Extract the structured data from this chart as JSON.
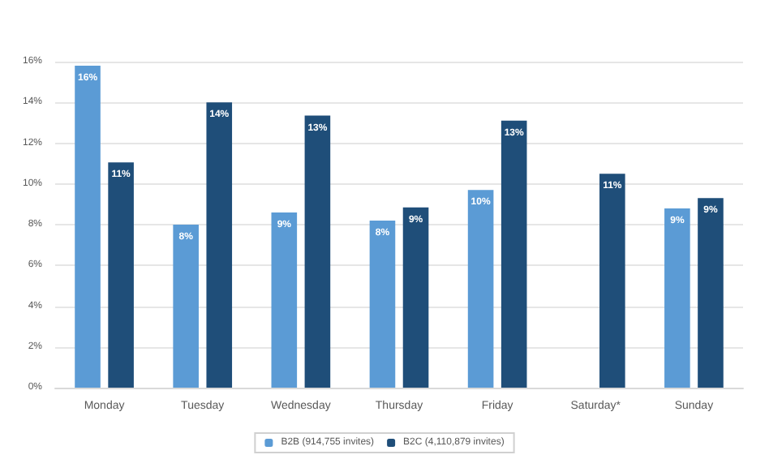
{
  "chart_data": {
    "type": "bar",
    "categories": [
      "Monday",
      "Tuesday",
      "Wednesday",
      "Thursday",
      "Friday",
      "Saturday*",
      "Sunday"
    ],
    "series": [
      {
        "name": "B2B (914,755 invites)",
        "color": "#5b9bd5",
        "values": [
          15.8,
          8.0,
          8.6,
          8.2,
          9.7,
          null,
          8.8
        ],
        "value_labels": [
          "16%",
          "8%",
          "9%",
          "8%",
          "10%",
          null,
          "9%"
        ]
      },
      {
        "name": "B2C (4,110,879 invites)",
        "color": "#1f4e79",
        "values": [
          11.05,
          14.0,
          13.35,
          8.85,
          13.1,
          10.5,
          9.3
        ],
        "value_labels": [
          "11%",
          "14%",
          "13%",
          "9%",
          "13%",
          "11%",
          "9%"
        ]
      }
    ],
    "ylim": [
      0,
      16
    ],
    "yticks": [
      {
        "value": 0,
        "label": "0%"
      },
      {
        "value": 2,
        "label": "2%"
      },
      {
        "value": 4,
        "label": "4%"
      },
      {
        "value": 6,
        "label": "6%"
      },
      {
        "value": 8,
        "label": "8%"
      },
      {
        "value": 10,
        "label": "10%"
      },
      {
        "value": 12,
        "label": "12%"
      },
      {
        "value": 14,
        "label": "14%"
      },
      {
        "value": 16,
        "label": "16%"
      }
    ],
    "grid": "y",
    "legend": "bottom"
  }
}
